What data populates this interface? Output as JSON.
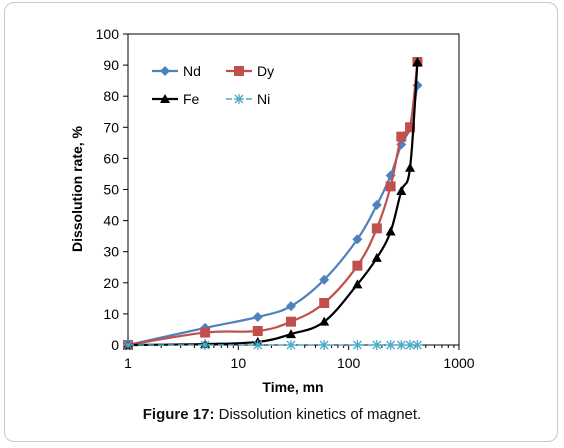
{
  "caption": {
    "label": "Figure 17:",
    "text": " Dissolution kinetics of magnet."
  },
  "chart_data": {
    "type": "line",
    "xlabel": "Time, mn",
    "ylabel": "Dissolution rate, %",
    "xscale": "log",
    "xlim": [
      1,
      1000
    ],
    "ylim": [
      0,
      100
    ],
    "x_ticks": [
      1,
      10,
      100,
      1000
    ],
    "x_tick_labels": [
      "1",
      "10",
      "100",
      "1000"
    ],
    "y_ticks": [
      0,
      10,
      20,
      30,
      40,
      50,
      60,
      70,
      80,
      90,
      100
    ],
    "y_tick_labels": [
      "0",
      "10",
      "20",
      "30",
      "40",
      "50",
      "60",
      "70",
      "80",
      "90",
      "100"
    ],
    "grid": false,
    "legend_position": "top-left",
    "series": [
      {
        "name": "Nd",
        "color": "#4f81bd",
        "marker": "diamond",
        "x": [
          1,
          5,
          15,
          30,
          60,
          120,
          180,
          240,
          300,
          360,
          420
        ],
        "y": [
          0,
          5.5,
          9,
          12.5,
          21,
          34,
          45,
          54.5,
          64.5,
          70,
          83.5
        ]
      },
      {
        "name": "Dy",
        "color": "#c0504d",
        "marker": "square",
        "x": [
          1,
          5,
          15,
          30,
          60,
          120,
          180,
          240,
          300,
          360,
          420
        ],
        "y": [
          0,
          4,
          4.5,
          7.5,
          13.5,
          25.5,
          37.5,
          51,
          67,
          70,
          91
        ]
      },
      {
        "name": "Fe",
        "color": "#000000",
        "marker": "triangle",
        "x": [
          1,
          5,
          15,
          30,
          60,
          120,
          180,
          240,
          300,
          360,
          420
        ],
        "y": [
          0,
          0.3,
          1,
          3.5,
          7.5,
          19.5,
          28,
          36.5,
          49.5,
          57,
          91
        ]
      },
      {
        "name": "Ni",
        "color": "#4bacc6",
        "marker": "star",
        "dashed": true,
        "x": [
          1,
          5,
          15,
          30,
          60,
          120,
          180,
          240,
          300,
          360,
          420
        ],
        "y": [
          0,
          0,
          0,
          0,
          0,
          0,
          0,
          0,
          0,
          0,
          0
        ]
      }
    ]
  }
}
